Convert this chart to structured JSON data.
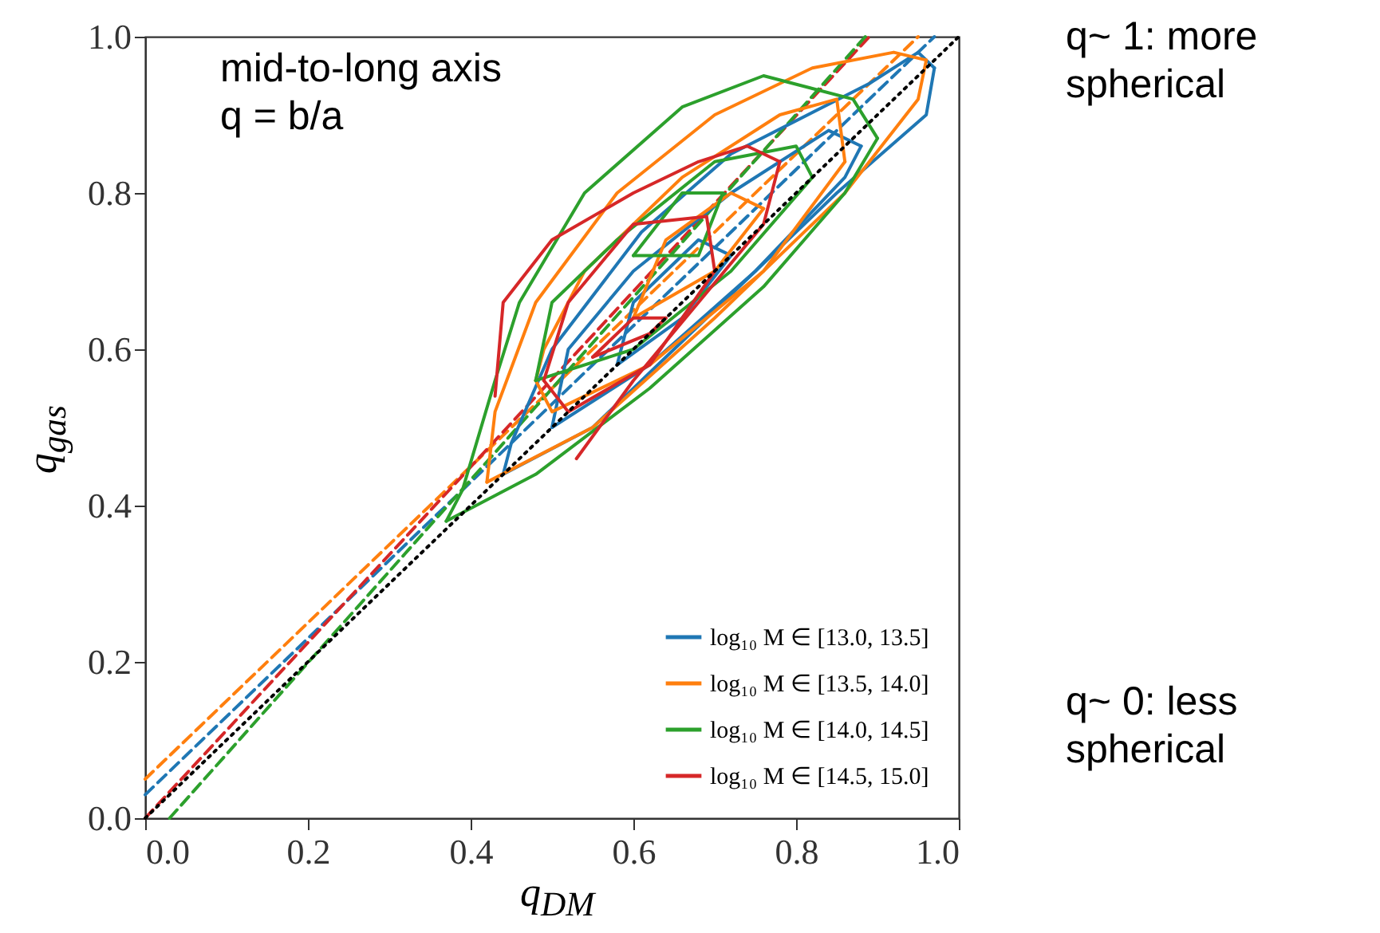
{
  "chart_data": {
    "type": "line",
    "xlabel": "q$_{DM}$",
    "ylabel": "q$_{gas}$",
    "xlim": [
      0,
      1
    ],
    "ylim": [
      0,
      1
    ],
    "xticks": [
      {
        "value": 0,
        "label": "0.0"
      },
      0.2,
      0.4,
      0.6,
      0.8,
      {
        "value": 1,
        "label": "1.0"
      }
    ],
    "yticks": [
      {
        "value": 0,
        "label": "0.0"
      },
      0.2,
      0.4,
      0.6,
      0.8,
      {
        "value": 1,
        "label": "1.0"
      }
    ],
    "grid": false,
    "legend": "bottom right",
    "line_style": "solid",
    "annotations": [
      "mid-to-long axis\nq = b/a",
      "q~ 1: more\nspherical",
      "q~ 0: less\nspherical"
    ],
    "series": [
      {
        "color": "#ff7f0e",
        "line_style": "dashed",
        "x": [
          0,
          0.95
        ],
        "values": [
          0.05,
          1.0
        ]
      },
      {
        "color": "#1f77b4",
        "line_style": "dashed",
        "x": [
          0,
          0.97
        ],
        "values": [
          0.03,
          1.0
        ]
      },
      {
        "color": "#d62728",
        "line_style": "dashed",
        "x": [
          0,
          0.89
        ],
        "values": [
          0,
          1.0
        ]
      },
      {
        "color": "#2ca02c",
        "line_style": "dashed",
        "x": [
          0.03,
          0.885
        ],
        "values": [
          0,
          1.0
        ]
      },
      {
        "name": "log₁₀ M ∈ [13.0, 13.5]",
        "color": "#1f77b4",
        "x": [
          0.44,
          0.55,
          0.7,
          0.85,
          0.96,
          0.97
        ],
        "values": [
          0.44,
          0.5,
          0.65,
          0.8,
          0.9,
          0.96
        ]
      },
      {
        "color": "#1f77b4",
        "x": [
          0.44,
          0.45,
          0.5,
          0.61,
          0.72,
          0.89,
          0.95,
          0.97
        ],
        "values": [
          0.44,
          0.48,
          0.6,
          0.75,
          0.85,
          0.94,
          0.98,
          0.96
        ]
      },
      {
        "color": "#1f77b4",
        "x": [
          0.5,
          0.62,
          0.75,
          0.86,
          0.88
        ],
        "values": [
          0.5,
          0.58,
          0.7,
          0.82,
          0.86
        ]
      },
      {
        "color": "#1f77b4",
        "x": [
          0.5,
          0.52,
          0.6,
          0.72,
          0.84,
          0.88
        ],
        "values": [
          0.5,
          0.6,
          0.7,
          0.8,
          0.88,
          0.86
        ]
      },
      {
        "color": "#1f77b4",
        "x": [
          0.58,
          0.66,
          0.72
        ],
        "values": [
          0.58,
          0.64,
          0.72
        ]
      },
      {
        "color": "#1f77b4",
        "x": [
          0.58,
          0.6,
          0.68,
          0.72
        ],
        "values": [
          0.58,
          0.66,
          0.74,
          0.72
        ]
      },
      {
        "name": "log₁₀ M ∈ [13.5, 14.0]",
        "color": "#ff7f0e",
        "x": [
          0.42,
          0.55,
          0.7,
          0.86,
          0.95,
          0.96
        ],
        "values": [
          0.43,
          0.5,
          0.64,
          0.8,
          0.92,
          0.97
        ]
      },
      {
        "color": "#ff7f0e",
        "x": [
          0.42,
          0.43,
          0.48,
          0.58,
          0.7,
          0.82,
          0.92,
          0.96
        ],
        "values": [
          0.43,
          0.52,
          0.66,
          0.8,
          0.9,
          0.96,
          0.98,
          0.97
        ]
      },
      {
        "color": "#ff7f0e",
        "x": [
          0.48,
          0.5,
          0.62,
          0.76,
          0.86
        ],
        "values": [
          0.56,
          0.52,
          0.58,
          0.7,
          0.84
        ]
      },
      {
        "color": "#ff7f0e",
        "x": [
          0.48,
          0.49,
          0.54,
          0.66,
          0.78,
          0.85,
          0.86
        ],
        "values": [
          0.56,
          0.6,
          0.7,
          0.82,
          0.9,
          0.92,
          0.84
        ]
      },
      {
        "color": "#ff7f0e",
        "x": [
          0.6,
          0.7,
          0.76
        ],
        "values": [
          0.64,
          0.7,
          0.78
        ]
      },
      {
        "color": "#ff7f0e",
        "x": [
          0.6,
          0.64,
          0.72,
          0.76
        ],
        "values": [
          0.64,
          0.74,
          0.8,
          0.78
        ]
      },
      {
        "name": "log₁₀ M ∈ [14.0, 14.5]",
        "color": "#2ca02c",
        "x": [
          0.37,
          0.48,
          0.62,
          0.76,
          0.86,
          0.9
        ],
        "values": [
          0.38,
          0.44,
          0.55,
          0.68,
          0.8,
          0.87
        ]
      },
      {
        "color": "#2ca02c",
        "x": [
          0.37,
          0.39,
          0.43,
          0.46,
          0.54,
          0.66,
          0.76,
          0.87,
          0.9
        ],
        "values": [
          0.38,
          0.42,
          0.56,
          0.66,
          0.8,
          0.91,
          0.95,
          0.92,
          0.87
        ]
      },
      {
        "color": "#2ca02c",
        "x": [
          0.48,
          0.6,
          0.72,
          0.82
        ],
        "values": [
          0.56,
          0.6,
          0.7,
          0.82
        ]
      },
      {
        "color": "#2ca02c",
        "x": [
          0.48,
          0.5,
          0.58,
          0.7,
          0.8,
          0.82
        ],
        "values": [
          0.56,
          0.66,
          0.74,
          0.84,
          0.86,
          0.82
        ]
      },
      {
        "color": "#2ca02c",
        "x": [
          0.6,
          0.68,
          0.71
        ],
        "values": [
          0.72,
          0.72,
          0.8
        ]
      },
      {
        "color": "#2ca02c",
        "x": [
          0.6,
          0.66,
          0.71
        ],
        "values": [
          0.72,
          0.8,
          0.8
        ]
      },
      {
        "name": "log₁₀ M ∈ [14.5, 15.0]",
        "color": "#d62728",
        "x": [
          0.53,
          0.6,
          0.68,
          0.76,
          0.78
        ],
        "values": [
          0.46,
          0.56,
          0.66,
          0.76,
          0.84
        ]
      },
      {
        "color": "#d62728",
        "x": [
          0.43,
          0.44,
          0.5,
          0.6,
          0.68,
          0.74,
          0.78
        ],
        "values": [
          0.54,
          0.66,
          0.74,
          0.8,
          0.84,
          0.86,
          0.84
        ]
      },
      {
        "color": "#d62728",
        "x": [
          0.49,
          0.52,
          0.62,
          0.7
        ],
        "values": [
          0.56,
          0.52,
          0.58,
          0.7
        ]
      },
      {
        "color": "#d62728",
        "x": [
          0.49,
          0.52,
          0.6,
          0.69,
          0.7
        ],
        "values": [
          0.56,
          0.66,
          0.76,
          0.77,
          0.7
        ]
      },
      {
        "color": "#d62728",
        "x": [
          0.55,
          0.62,
          0.64
        ],
        "values": [
          0.59,
          0.62,
          0.64
        ]
      },
      {
        "color": "#d62728",
        "x": [
          0.55,
          0.6,
          0.64
        ],
        "values": [
          0.59,
          0.64,
          0.64
        ]
      },
      {
        "color": "#000000",
        "line_style": "dotted",
        "x": [
          0,
          1
        ],
        "values": [
          0,
          1
        ]
      }
    ]
  }
}
